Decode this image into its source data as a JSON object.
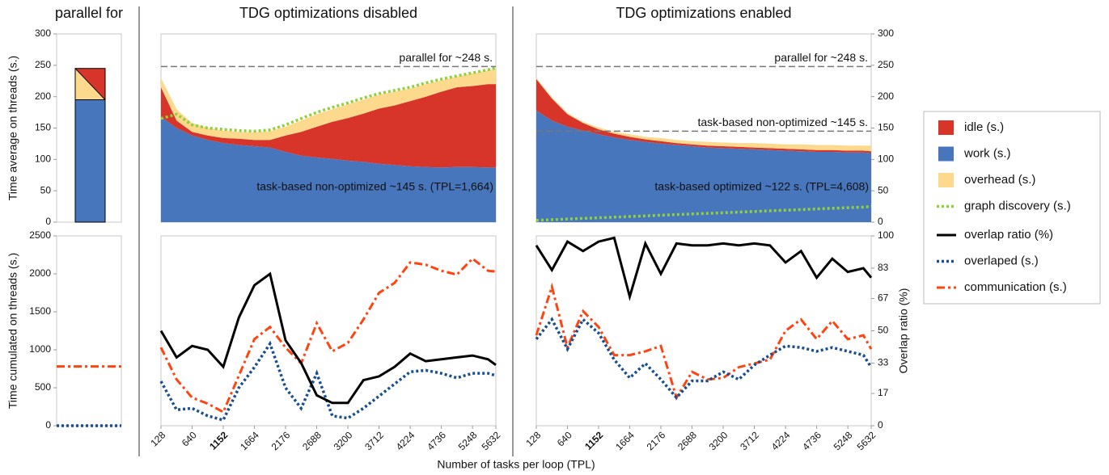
{
  "legend_position": "right",
  "chart_data": [
    {
      "type": "bar",
      "title": "parallel for",
      "ylabel": "Time average on threads (s.)",
      "ylim": [
        0,
        300
      ],
      "yticks": [
        0,
        50,
        100,
        150,
        200,
        250,
        300
      ],
      "ytick_side": "left",
      "stack_order": [
        1,
        2,
        0
      ],
      "split": "diagonal",
      "series": [
        {
          "name": "idle (s.)",
          "color": "#d8352a",
          "values": [
            25
          ]
        },
        {
          "name": "work (s.)",
          "color": "#4876bd",
          "values": [
            195
          ]
        },
        {
          "name": "overhead (s.)",
          "color": "#fdd98d",
          "values": [
            25
          ]
        }
      ]
    },
    {
      "type": "hline",
      "ylabel": "Time cumulated on threads (s.)",
      "ylim": [
        0,
        2500
      ],
      "yticks": [
        0,
        500,
        1000,
        1500,
        2000,
        2500
      ],
      "ytick_side": "left",
      "series": [
        {
          "name": "communication (s.)",
          "color": "#ff4410",
          "dash": "dashdot",
          "values": [
            780
          ]
        },
        {
          "name": "overlaped (s.)",
          "color": "#1a4f8f",
          "dash": "dotted",
          "values": [
            0
          ]
        }
      ]
    },
    {
      "type": "area",
      "title": "TDG optimizations disabled",
      "x": [
        128,
        384,
        640,
        896,
        1152,
        1408,
        1664,
        1920,
        2176,
        2432,
        2688,
        2944,
        3200,
        3456,
        3712,
        3968,
        4224,
        4480,
        4736,
        4992,
        5248,
        5504,
        5632
      ],
      "xlim": [
        128,
        5632
      ],
      "ylim": [
        0,
        300
      ],
      "stack_order": [
        1,
        0,
        2
      ],
      "note": "task-based non-optimized ~145 s. (TPL=1,664)",
      "annotations": [
        {
          "text": "parallel for ~248 s.",
          "value": 248
        }
      ],
      "series": [
        {
          "name": "idle (s.)",
          "color": "#d8352a",
          "values": [
            47,
            12,
            6,
            7,
            8,
            10,
            10,
            12,
            26,
            38,
            49,
            59,
            68,
            77,
            88,
            95,
            104,
            112,
            121,
            127,
            129,
            133,
            133
          ]
        },
        {
          "name": "work (s.)",
          "color": "#4876bd",
          "values": [
            168,
            150,
            138,
            131,
            126,
            123,
            121,
            119,
            112,
            106,
            103,
            101,
            98,
            96,
            93,
            91,
            89,
            88,
            87,
            88,
            88,
            87,
            87
          ]
        },
        {
          "name": "overhead (s.)",
          "color": "#fdd98d",
          "values": [
            15,
            18,
            14,
            12,
            12,
            11,
            12,
            14,
            14,
            18,
            20,
            20,
            22,
            22,
            22,
            22,
            20,
            20,
            18,
            17,
            20,
            22,
            25
          ]
        },
        {
          "name": "graph discovery (s.)",
          "color": "#8fd13c",
          "dash": "dotted",
          "values": [
            165,
            172,
            155,
            150,
            148,
            146,
            145,
            147,
            155,
            165,
            175,
            183,
            190,
            198,
            205,
            210,
            215,
            222,
            228,
            233,
            238,
            243,
            246
          ]
        }
      ]
    },
    {
      "type": "line",
      "xlabel": "Number of tasks per loop (TPL)",
      "x": [
        128,
        384,
        640,
        896,
        1152,
        1408,
        1664,
        1920,
        2176,
        2432,
        2688,
        2944,
        3200,
        3456,
        3712,
        3968,
        4224,
        4480,
        4736,
        4992,
        5248,
        5504,
        5632
      ],
      "xlim": [
        128,
        5632
      ],
      "xticks": [
        128,
        640,
        1152,
        1664,
        2176,
        2688,
        3200,
        3712,
        4224,
        4736,
        5248,
        5632
      ],
      "bold_xtick": 1152,
      "ylim": [
        0,
        2500
      ],
      "y2lim": [
        0,
        100
      ],
      "series": [
        {
          "name": "overlap ratio (%)",
          "color": "#000000",
          "dash": "solid",
          "axis": "y2",
          "values": [
            50,
            36,
            42,
            40,
            31,
            57,
            74,
            80,
            45,
            33,
            16,
            12,
            12,
            24,
            26,
            31,
            38,
            34,
            35,
            36,
            37,
            35,
            32
          ]
        },
        {
          "name": "overlaped (s.)",
          "color": "#1a4f8f",
          "dash": "dotted",
          "values": [
            585,
            210,
            230,
            130,
            75,
            500,
            770,
            1080,
            500,
            230,
            690,
            130,
            100,
            230,
            390,
            550,
            710,
            730,
            690,
            630,
            690,
            690,
            660
          ]
        },
        {
          "name": "communication (s.)",
          "color": "#ff4410",
          "dash": "dashdot",
          "values": [
            1030,
            610,
            370,
            290,
            180,
            660,
            1140,
            1300,
            1030,
            820,
            1350,
            980,
            1090,
            1400,
            1750,
            1880,
            2150,
            2120,
            2040,
            1990,
            2200,
            2040,
            2030
          ]
        }
      ]
    },
    {
      "type": "area",
      "title": "TDG optimizations enabled",
      "x": [
        128,
        384,
        640,
        896,
        1152,
        1408,
        1664,
        1920,
        2176,
        2432,
        2688,
        2944,
        3200,
        3456,
        3712,
        3968,
        4224,
        4480,
        4736,
        4992,
        5248,
        5504,
        5632
      ],
      "xlim": [
        128,
        5632
      ],
      "ylim": [
        0,
        300
      ],
      "yticks": [
        0,
        50,
        100,
        150,
        200,
        250,
        300
      ],
      "ytick_side": "right",
      "stack_order": [
        1,
        0,
        2
      ],
      "note": "task-based optimized ~122 s. (TPL=4,608)",
      "annotations": [
        {
          "text": "parallel for ~248 s.",
          "value": 248
        },
        {
          "text": "task-based non-optimized ~145 s.",
          "value": 145
        }
      ],
      "series": [
        {
          "name": "idle (s.)",
          "color": "#d8352a",
          "values": [
            50,
            35,
            20,
            12,
            8,
            6,
            5,
            4,
            4,
            3,
            3,
            3,
            3,
            3,
            3,
            3,
            3,
            3,
            3,
            3,
            3,
            3,
            3
          ]
        },
        {
          "name": "work (s.)",
          "color": "#4876bd",
          "values": [
            178,
            162,
            152,
            146,
            140,
            135,
            131,
            128,
            125,
            123,
            121,
            119,
            118,
            117,
            116,
            115,
            114,
            113,
            112,
            112,
            111,
            111,
            110
          ]
        },
        {
          "name": "overhead (s.)",
          "color": "#fdd98d",
          "values": [
            2,
            2,
            2,
            2,
            3,
            3,
            4,
            4,
            5,
            5,
            5,
            6,
            6,
            6,
            7,
            7,
            7,
            8,
            8,
            8,
            8,
            8,
            9
          ]
        },
        {
          "name": "graph discovery (s.)",
          "color": "#8fd13c",
          "dash": "dotted",
          "values": [
            3,
            4,
            5,
            6,
            7,
            8,
            9,
            10,
            11,
            12,
            13,
            14,
            15,
            16,
            17,
            18,
            19,
            20,
            21,
            22,
            23,
            24,
            25
          ]
        }
      ]
    },
    {
      "type": "line",
      "y2label": "Overlap ratio (%)",
      "x": [
        128,
        384,
        640,
        896,
        1152,
        1408,
        1664,
        1920,
        2176,
        2432,
        2688,
        2944,
        3200,
        3456,
        3712,
        3968,
        4224,
        4480,
        4736,
        4992,
        5248,
        5504,
        5632
      ],
      "xlim": [
        128,
        5632
      ],
      "xticks": [
        128,
        640,
        1152,
        1664,
        2176,
        2688,
        3200,
        3712,
        4224,
        4736,
        5248,
        5632
      ],
      "bold_xtick": 1152,
      "ylim": [
        0,
        2500
      ],
      "y2lim": [
        0,
        100
      ],
      "y2ticks": [
        0,
        17,
        33,
        50,
        67,
        83,
        100
      ],
      "series": [
        {
          "name": "overlap ratio (%)",
          "color": "#000000",
          "dash": "solid",
          "axis": "y2",
          "values": [
            95,
            82,
            97,
            92,
            97,
            99,
            68,
            96,
            80,
            96,
            95,
            95,
            96,
            95,
            96,
            95,
            86,
            92,
            78,
            88,
            81,
            83,
            78
          ]
        },
        {
          "name": "overlaped (s.)",
          "color": "#1a4f8f",
          "dash": "dotted",
          "values": [
            1140,
            1400,
            1010,
            1400,
            1220,
            870,
            630,
            820,
            610,
            370,
            590,
            590,
            710,
            610,
            800,
            930,
            1050,
            1030,
            980,
            1030,
            980,
            930,
            770
          ]
        },
        {
          "name": "communication (s.)",
          "color": "#ff4410",
          "dash": "dashdot",
          "values": [
            1190,
            1830,
            1030,
            1510,
            1300,
            930,
            930,
            980,
            1050,
            370,
            710,
            610,
            630,
            770,
            820,
            870,
            1250,
            1400,
            1140,
            1380,
            1140,
            1190,
            1010
          ]
        }
      ]
    }
  ]
}
